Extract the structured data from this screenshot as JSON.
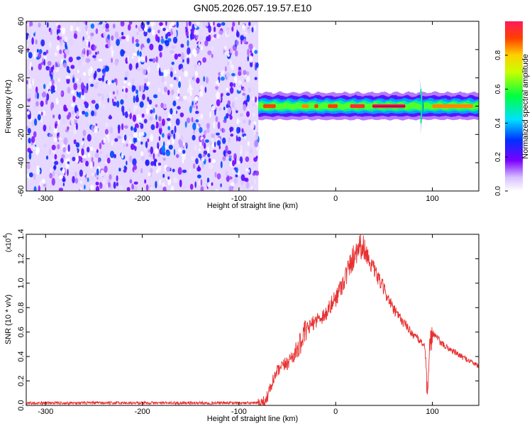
{
  "title": "GN05.2026.057.19.57.E10",
  "chart_data": [
    {
      "type": "heatmap",
      "xlabel": "Height of straight line (km)",
      "ylabel": "Frequency (Hz)",
      "xlim": [
        -320,
        148
      ],
      "ylim": [
        -60,
        60
      ],
      "xticks": [
        -300,
        -200,
        -100,
        0,
        100
      ],
      "yticks": [
        -60,
        -40,
        -20,
        0,
        20,
        40,
        60
      ],
      "noise_region": {
        "x": [
          -320,
          -80
        ],
        "y": [
          -60,
          60
        ],
        "amplitude_range": [
          0.0,
          0.35
        ]
      },
      "signal_band": {
        "x": [
          -80,
          148
        ],
        "center_freq": 0,
        "halfwidth_hz": 3,
        "peak_segments": [
          {
            "x": [
              -75,
              -62
            ],
            "amplitude": 0.9
          },
          {
            "x": [
              -35,
              -28
            ],
            "amplitude": 0.85
          },
          {
            "x": [
              -22,
              -18
            ],
            "amplitude": 0.9
          },
          {
            "x": [
              -8,
              2
            ],
            "amplitude": 0.9
          },
          {
            "x": [
              15,
              30
            ],
            "amplitude": 0.95
          },
          {
            "x": [
              38,
              72
            ],
            "amplitude": 1.0
          },
          {
            "x": [
              100,
              142
            ],
            "amplitude": 0.85
          }
        ],
        "spikes": [
          {
            "x": 88,
            "freq_range": [
              -20,
              20
            ]
          }
        ]
      },
      "colorbar": {
        "label": "Normalized spectral amplitude",
        "ticks": [
          0.0,
          0.2,
          0.4,
          0.6,
          0.8
        ],
        "range": [
          0,
          1
        ]
      }
    },
    {
      "type": "line",
      "xlabel": "Height of straight line (km)",
      "ylabel": "SNR (10 * v/v)",
      "scale_label": "(x10",
      "scale_exp": "4",
      "scale_close": ")",
      "xlim": [
        -320,
        148
      ],
      "ylim": [
        0,
        1.4
      ],
      "xticks": [
        -300,
        -200,
        -100,
        0,
        100
      ],
      "yticks": [
        0.0,
        0.2,
        0.4,
        0.6,
        0.8,
        1.0,
        1.2,
        1.4
      ],
      "color": "#e83030",
      "series": [
        {
          "x": [
            -320,
            -200,
            -100,
            -75,
            -70,
            -65,
            -60,
            -50,
            -40,
            -30,
            -20,
            -10,
            0,
            10,
            20,
            25,
            30,
            40,
            50,
            60,
            70,
            80,
            88,
            92,
            95,
            98,
            102,
            110,
            120,
            130,
            140,
            148
          ],
          "values": [
            0.02,
            0.02,
            0.02,
            0.02,
            0.08,
            0.2,
            0.28,
            0.35,
            0.45,
            0.62,
            0.7,
            0.75,
            0.88,
            1.05,
            1.25,
            1.32,
            1.27,
            1.1,
            0.95,
            0.78,
            0.68,
            0.58,
            0.52,
            0.5,
            0.05,
            0.6,
            0.58,
            0.5,
            0.45,
            0.4,
            0.36,
            0.32
          ]
        }
      ]
    }
  ]
}
